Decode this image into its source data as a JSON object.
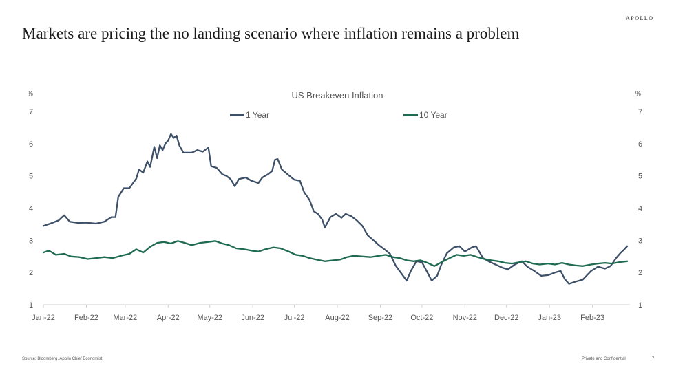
{
  "brand": "APOLLO",
  "headline": "Markets are pricing the no landing scenario where inflation remains a problem",
  "footer": {
    "source": "Source: Bloomberg, Apollo Chief Economist",
    "confidential": "Private and Confidential",
    "page": "7"
  },
  "chart_data": {
    "type": "line",
    "title": "US Breakeven Inflation",
    "ylabel_left": "%",
    "ylabel_right": "%",
    "ylim": [
      1,
      7
    ],
    "yticks": [
      1,
      2,
      3,
      4,
      5,
      6,
      7
    ],
    "xlim": [
      "2022-01-01",
      "2023-02-28"
    ],
    "xticks": [
      "Jan-22",
      "Feb-22",
      "Mar-22",
      "Apr-22",
      "May-22",
      "Jun-22",
      "Jul-22",
      "Aug-22",
      "Sep-22",
      "Oct-22",
      "Nov-22",
      "Dec-22",
      "Jan-23",
      "Feb-23"
    ],
    "legend_position": "top-center",
    "grid": false,
    "series": [
      {
        "name": "1 Year",
        "color": "#3d5068",
        "points": [
          [
            "2022-01-01",
            3.45
          ],
          [
            "2022-01-06",
            3.52
          ],
          [
            "2022-01-12",
            3.62
          ],
          [
            "2022-01-16",
            3.78
          ],
          [
            "2022-01-20",
            3.58
          ],
          [
            "2022-01-26",
            3.54
          ],
          [
            "2022-02-01",
            3.55
          ],
          [
            "2022-02-08",
            3.52
          ],
          [
            "2022-02-14",
            3.58
          ],
          [
            "2022-02-19",
            3.72
          ],
          [
            "2022-02-22",
            3.72
          ],
          [
            "2022-02-24",
            4.35
          ],
          [
            "2022-02-28",
            4.62
          ],
          [
            "2022-03-04",
            4.62
          ],
          [
            "2022-03-09",
            4.92
          ],
          [
            "2022-03-11",
            5.2
          ],
          [
            "2022-03-14",
            5.1
          ],
          [
            "2022-03-17",
            5.45
          ],
          [
            "2022-03-19",
            5.28
          ],
          [
            "2022-03-22",
            5.9
          ],
          [
            "2022-03-24",
            5.55
          ],
          [
            "2022-03-26",
            5.95
          ],
          [
            "2022-03-28",
            5.8
          ],
          [
            "2022-03-30",
            6.0
          ],
          [
            "2022-04-01",
            6.1
          ],
          [
            "2022-04-03",
            6.3
          ],
          [
            "2022-04-05",
            6.18
          ],
          [
            "2022-04-07",
            6.25
          ],
          [
            "2022-04-09",
            5.95
          ],
          [
            "2022-04-12",
            5.72
          ],
          [
            "2022-04-18",
            5.72
          ],
          [
            "2022-04-22",
            5.8
          ],
          [
            "2022-04-26",
            5.75
          ],
          [
            "2022-04-30",
            5.88
          ],
          [
            "2022-05-02",
            5.3
          ],
          [
            "2022-05-06",
            5.25
          ],
          [
            "2022-05-10",
            5.05
          ],
          [
            "2022-05-13",
            5.0
          ],
          [
            "2022-05-16",
            4.9
          ],
          [
            "2022-05-19",
            4.68
          ],
          [
            "2022-05-22",
            4.9
          ],
          [
            "2022-05-27",
            4.95
          ],
          [
            "2022-05-31",
            4.85
          ],
          [
            "2022-06-05",
            4.78
          ],
          [
            "2022-06-08",
            4.95
          ],
          [
            "2022-06-12",
            5.05
          ],
          [
            "2022-06-15",
            5.15
          ],
          [
            "2022-06-17",
            5.5
          ],
          [
            "2022-06-19",
            5.52
          ],
          [
            "2022-06-22",
            5.2
          ],
          [
            "2022-06-26",
            5.05
          ],
          [
            "2022-07-01",
            4.88
          ],
          [
            "2022-07-05",
            4.85
          ],
          [
            "2022-07-08",
            4.5
          ],
          [
            "2022-07-12",
            4.25
          ],
          [
            "2022-07-15",
            3.9
          ],
          [
            "2022-07-18",
            3.82
          ],
          [
            "2022-07-21",
            3.65
          ],
          [
            "2022-07-23",
            3.4
          ],
          [
            "2022-07-27",
            3.72
          ],
          [
            "2022-07-31",
            3.82
          ],
          [
            "2022-08-04",
            3.7
          ],
          [
            "2022-08-07",
            3.82
          ],
          [
            "2022-08-11",
            3.75
          ],
          [
            "2022-08-15",
            3.62
          ],
          [
            "2022-08-19",
            3.45
          ],
          [
            "2022-08-23",
            3.15
          ],
          [
            "2022-08-27",
            3.0
          ],
          [
            "2022-08-31",
            2.85
          ],
          [
            "2022-09-04",
            2.72
          ],
          [
            "2022-09-08",
            2.58
          ],
          [
            "2022-09-12",
            2.22
          ],
          [
            "2022-09-16",
            1.98
          ],
          [
            "2022-09-20",
            1.75
          ],
          [
            "2022-09-23",
            2.05
          ],
          [
            "2022-09-27",
            2.35
          ],
          [
            "2022-10-01",
            2.32
          ],
          [
            "2022-10-05",
            2.0
          ],
          [
            "2022-10-08",
            1.75
          ],
          [
            "2022-10-12",
            1.9
          ],
          [
            "2022-10-15",
            2.25
          ],
          [
            "2022-10-19",
            2.6
          ],
          [
            "2022-10-24",
            2.78
          ],
          [
            "2022-10-28",
            2.82
          ],
          [
            "2022-11-01",
            2.65
          ],
          [
            "2022-11-06",
            2.78
          ],
          [
            "2022-11-09",
            2.82
          ],
          [
            "2022-11-14",
            2.45
          ],
          [
            "2022-11-18",
            2.35
          ],
          [
            "2022-11-23",
            2.25
          ],
          [
            "2022-11-28",
            2.15
          ],
          [
            "2022-12-02",
            2.1
          ],
          [
            "2022-12-07",
            2.25
          ],
          [
            "2022-12-12",
            2.35
          ],
          [
            "2022-12-16",
            2.18
          ],
          [
            "2022-12-21",
            2.05
          ],
          [
            "2022-12-26",
            1.9
          ],
          [
            "2022-12-31",
            1.92
          ],
          [
            "2023-01-05",
            2.0
          ],
          [
            "2023-01-09",
            2.05
          ],
          [
            "2023-01-12",
            1.8
          ],
          [
            "2023-01-15",
            1.65
          ],
          [
            "2023-01-20",
            1.72
          ],
          [
            "2023-01-25",
            1.78
          ],
          [
            "2023-01-31",
            2.05
          ],
          [
            "2023-02-05",
            2.18
          ],
          [
            "2023-02-10",
            2.12
          ],
          [
            "2023-02-14",
            2.2
          ],
          [
            "2023-02-18",
            2.45
          ],
          [
            "2023-02-21",
            2.6
          ],
          [
            "2023-02-24",
            2.72
          ],
          [
            "2023-02-26",
            2.82
          ]
        ]
      },
      {
        "name": "10 Year",
        "color": "#1e6b52",
        "points": [
          [
            "2022-01-01",
            2.62
          ],
          [
            "2022-01-05",
            2.68
          ],
          [
            "2022-01-10",
            2.55
          ],
          [
            "2022-01-16",
            2.58
          ],
          [
            "2022-01-21",
            2.5
          ],
          [
            "2022-01-27",
            2.48
          ],
          [
            "2022-02-02",
            2.42
          ],
          [
            "2022-02-08",
            2.45
          ],
          [
            "2022-02-14",
            2.48
          ],
          [
            "2022-02-20",
            2.45
          ],
          [
            "2022-02-26",
            2.52
          ],
          [
            "2022-03-04",
            2.58
          ],
          [
            "2022-03-09",
            2.72
          ],
          [
            "2022-03-14",
            2.62
          ],
          [
            "2022-03-19",
            2.8
          ],
          [
            "2022-03-24",
            2.92
          ],
          [
            "2022-03-29",
            2.95
          ],
          [
            "2022-04-03",
            2.9
          ],
          [
            "2022-04-08",
            2.98
          ],
          [
            "2022-04-13",
            2.92
          ],
          [
            "2022-04-18",
            2.85
          ],
          [
            "2022-04-24",
            2.92
          ],
          [
            "2022-04-30",
            2.95
          ],
          [
            "2022-05-05",
            2.98
          ],
          [
            "2022-05-10",
            2.9
          ],
          [
            "2022-05-15",
            2.85
          ],
          [
            "2022-05-20",
            2.75
          ],
          [
            "2022-05-26",
            2.72
          ],
          [
            "2022-05-31",
            2.68
          ],
          [
            "2022-06-05",
            2.65
          ],
          [
            "2022-06-10",
            2.72
          ],
          [
            "2022-06-16",
            2.78
          ],
          [
            "2022-06-21",
            2.75
          ],
          [
            "2022-06-27",
            2.65
          ],
          [
            "2022-07-02",
            2.55
          ],
          [
            "2022-07-07",
            2.52
          ],
          [
            "2022-07-12",
            2.45
          ],
          [
            "2022-07-17",
            2.4
          ],
          [
            "2022-07-23",
            2.35
          ],
          [
            "2022-07-29",
            2.38
          ],
          [
            "2022-08-03",
            2.4
          ],
          [
            "2022-08-08",
            2.48
          ],
          [
            "2022-08-13",
            2.52
          ],
          [
            "2022-08-19",
            2.5
          ],
          [
            "2022-08-25",
            2.48
          ],
          [
            "2022-08-31",
            2.52
          ],
          [
            "2022-09-05",
            2.55
          ],
          [
            "2022-09-10",
            2.48
          ],
          [
            "2022-09-15",
            2.45
          ],
          [
            "2022-09-20",
            2.38
          ],
          [
            "2022-09-25",
            2.35
          ],
          [
            "2022-09-30",
            2.38
          ],
          [
            "2022-10-05",
            2.3
          ],
          [
            "2022-10-10",
            2.2
          ],
          [
            "2022-10-15",
            2.32
          ],
          [
            "2022-10-21",
            2.45
          ],
          [
            "2022-10-26",
            2.55
          ],
          [
            "2022-10-31",
            2.52
          ],
          [
            "2022-11-05",
            2.55
          ],
          [
            "2022-11-10",
            2.48
          ],
          [
            "2022-11-15",
            2.42
          ],
          [
            "2022-11-20",
            2.38
          ],
          [
            "2022-11-25",
            2.35
          ],
          [
            "2022-11-30",
            2.3
          ],
          [
            "2022-12-05",
            2.28
          ],
          [
            "2022-12-10",
            2.32
          ],
          [
            "2022-12-15",
            2.35
          ],
          [
            "2022-12-20",
            2.28
          ],
          [
            "2022-12-25",
            2.25
          ],
          [
            "2022-12-31",
            2.28
          ],
          [
            "2023-01-05",
            2.25
          ],
          [
            "2023-01-10",
            2.3
          ],
          [
            "2023-01-15",
            2.25
          ],
          [
            "2023-01-20",
            2.22
          ],
          [
            "2023-01-25",
            2.2
          ],
          [
            "2023-01-31",
            2.25
          ],
          [
            "2023-02-05",
            2.28
          ],
          [
            "2023-02-10",
            2.3
          ],
          [
            "2023-02-15",
            2.28
          ],
          [
            "2023-02-20",
            2.32
          ],
          [
            "2023-02-26",
            2.35
          ]
        ]
      }
    ]
  }
}
